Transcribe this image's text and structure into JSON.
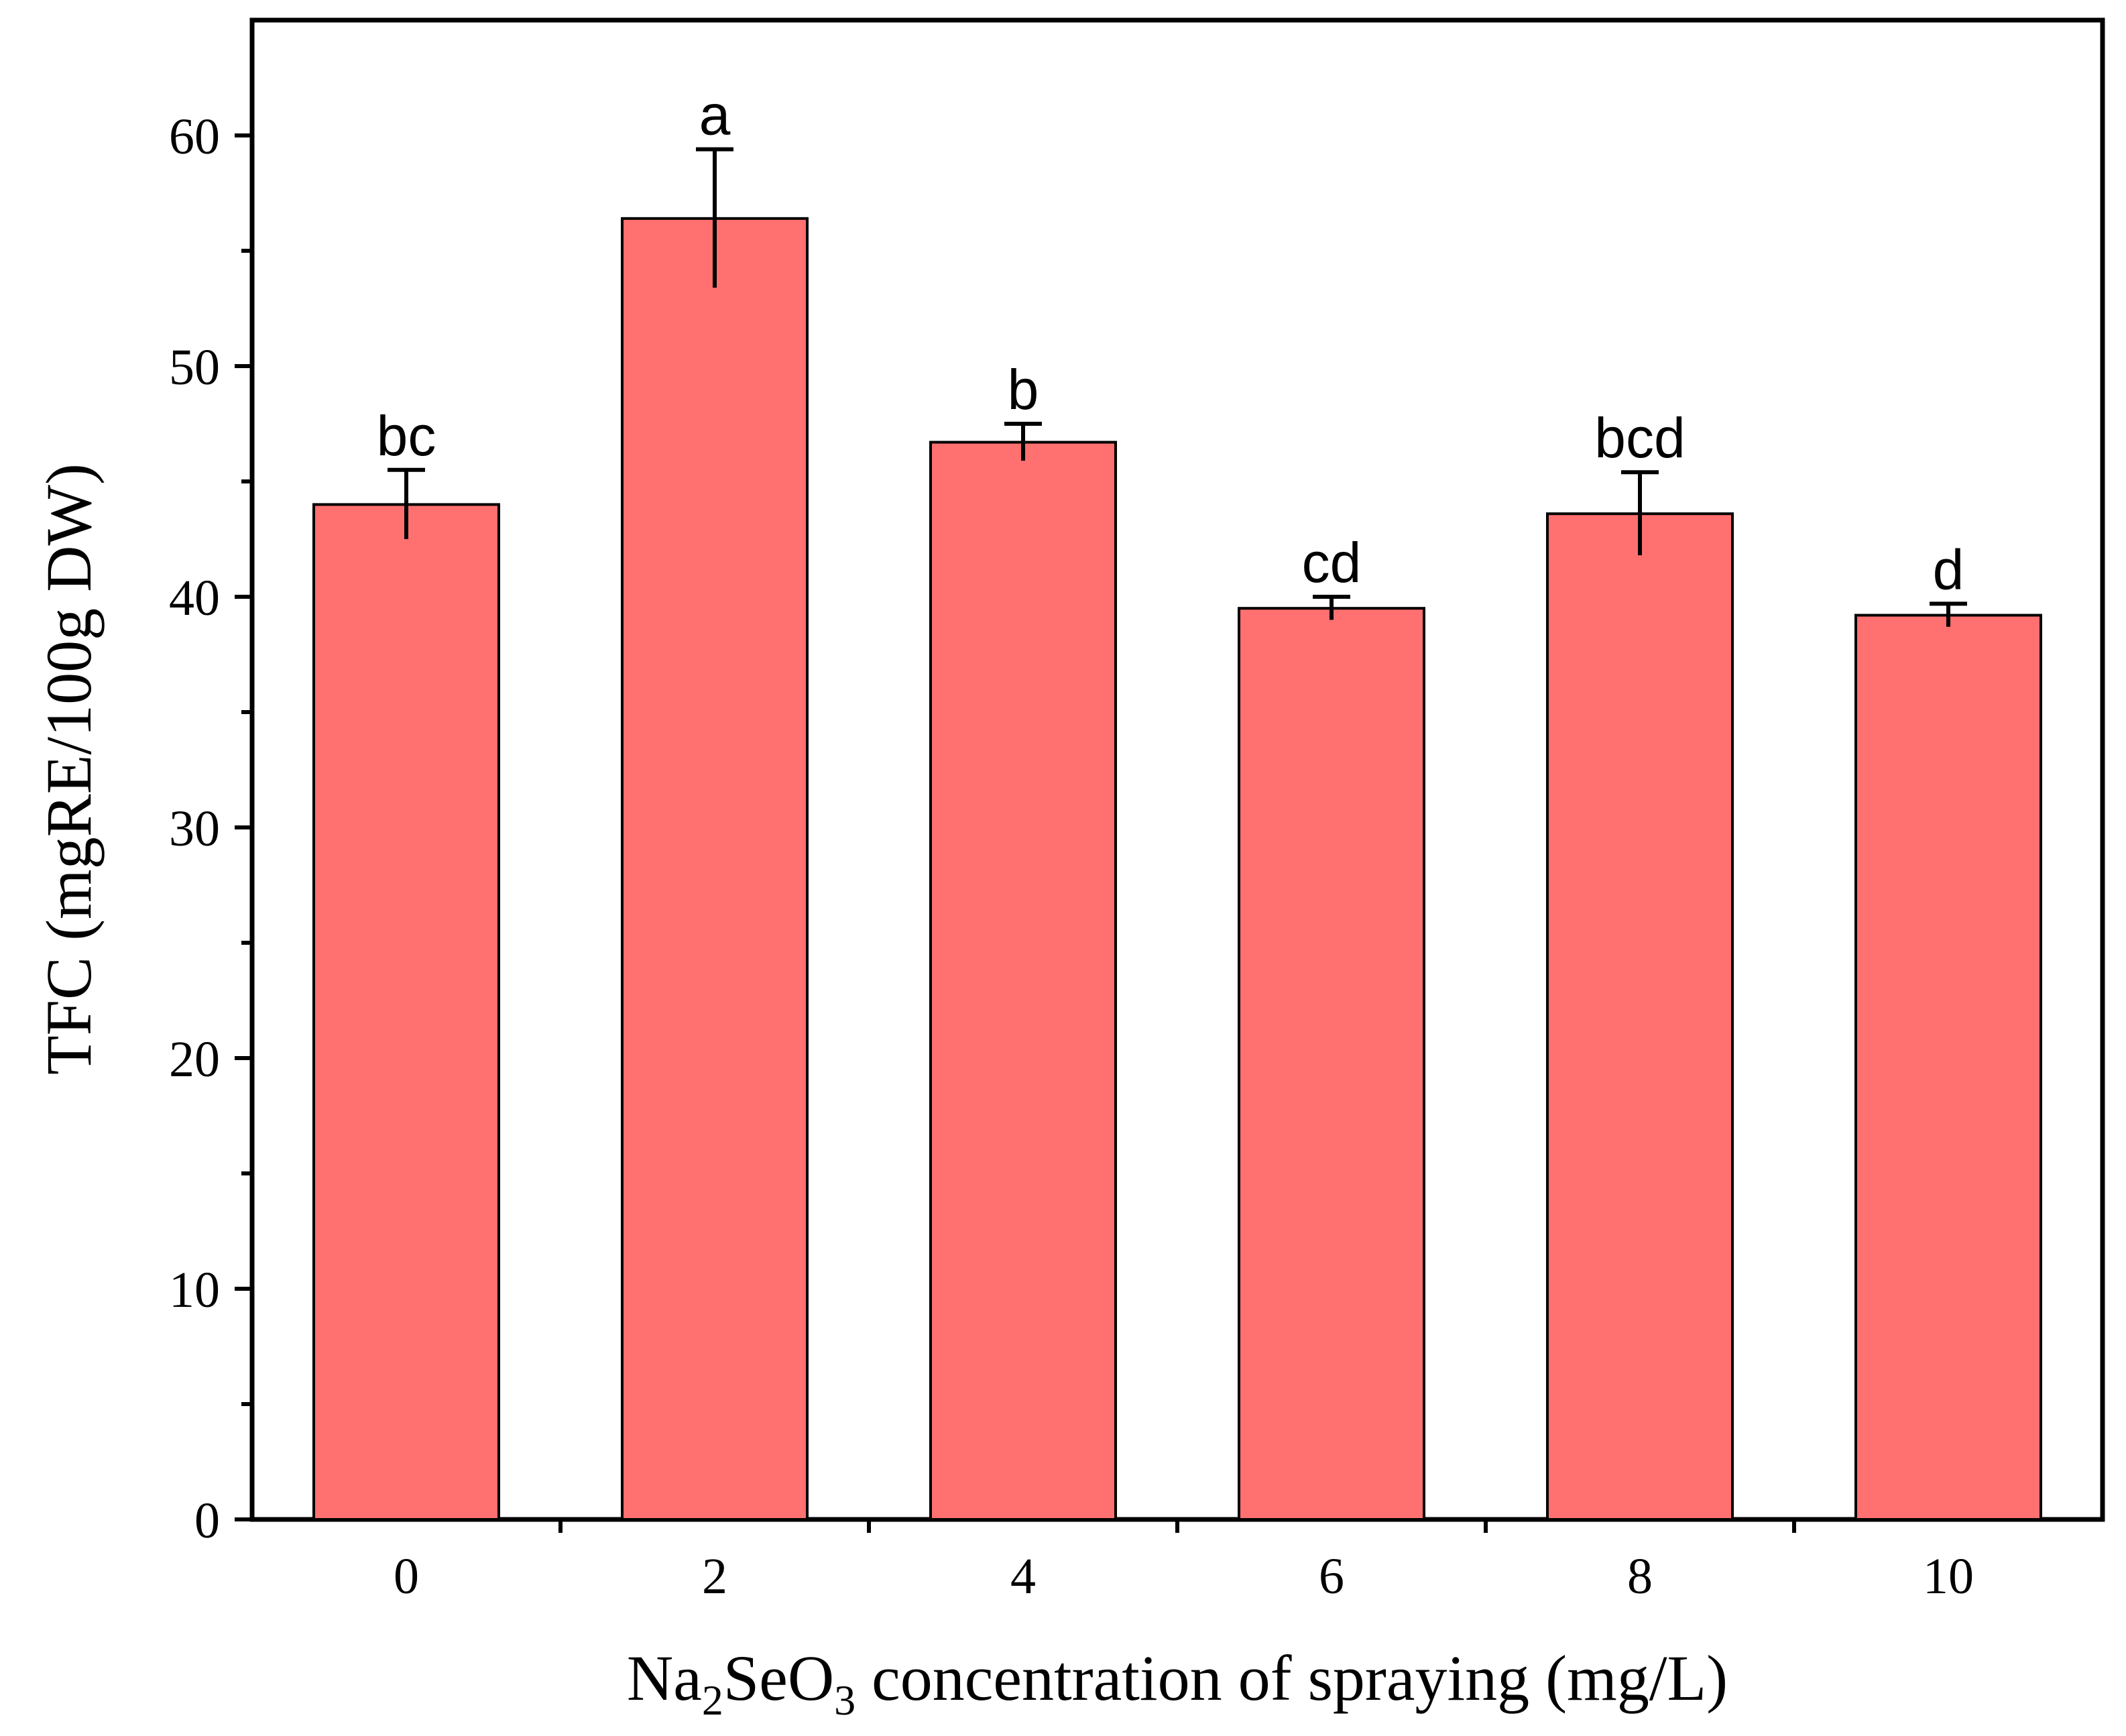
{
  "chart_data": {
    "type": "bar",
    "categories": [
      "0",
      "2",
      "4",
      "6",
      "8",
      "10"
    ],
    "values": [
      44.0,
      56.4,
      46.7,
      39.5,
      43.6,
      39.2
    ],
    "errors": [
      1.5,
      3.0,
      0.8,
      0.5,
      1.8,
      0.5
    ],
    "significance": [
      "bc",
      "a",
      "b",
      "cd",
      "bcd",
      "d"
    ],
    "y_ticks": [
      0,
      10,
      20,
      30,
      40,
      50,
      60
    ],
    "y_tick_labels": [
      "0",
      "10",
      "20",
      "30",
      "40",
      "50",
      "60"
    ],
    "ylim": [
      0,
      65
    ],
    "xlabel_parts": [
      "Na",
      "2",
      "SeO",
      "3",
      " concentration of spraying (mg/L)"
    ],
    "ylabel": "TFC (mgRE/100g DW)",
    "bar_color": "#ff7070",
    "grid": false
  }
}
